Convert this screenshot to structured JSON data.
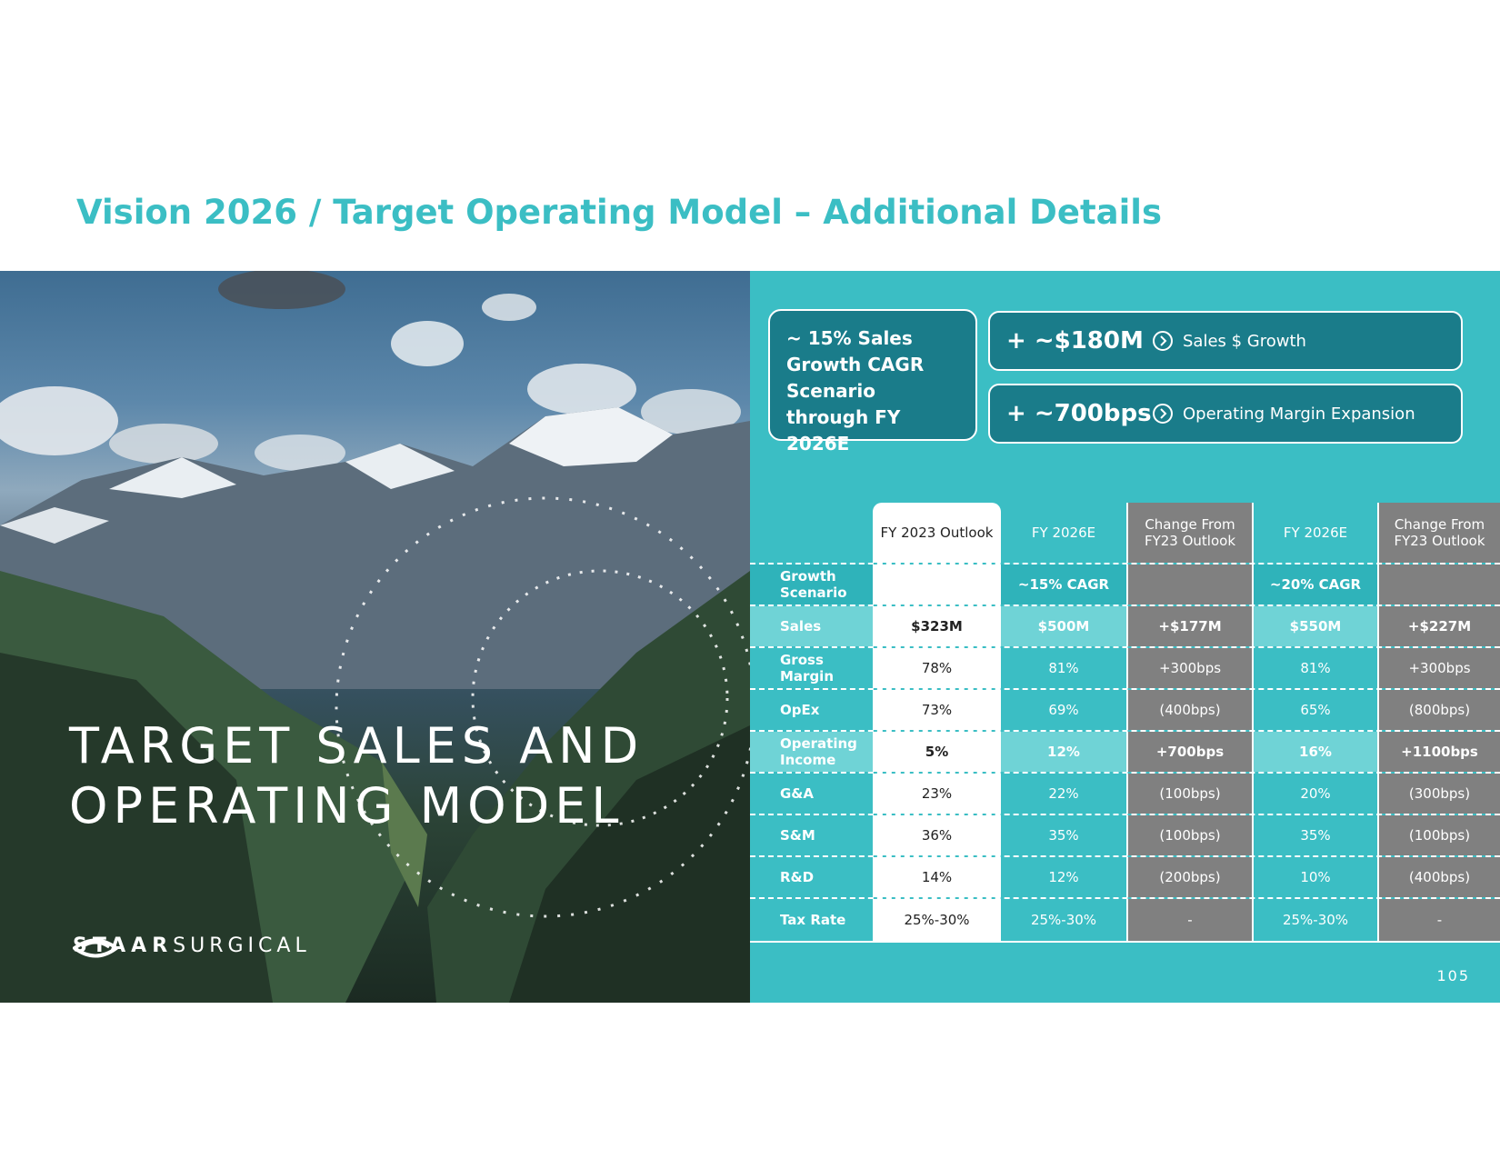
{
  "title": "Vision 2026 / Target Operating Model – Additional Details",
  "photo": {
    "heading_line1": "TARGET SALES AND",
    "heading_line2": "OPERATING MODEL",
    "logo_bold": "STAAR",
    "logo_light": "SURGICAL",
    "logo_icon": "eye-icon"
  },
  "summary": {
    "cagr_box": "~ 15% Sales Growth CAGR Scenario through FY 2026E",
    "kpis": [
      {
        "value": "+ ~$180M",
        "label": "Sales $ Growth",
        "icon": "chevron-right-circle-icon"
      },
      {
        "value": "+ ~700bps",
        "label": "Operating Margin Expansion",
        "icon": "chevron-right-circle-icon"
      }
    ]
  },
  "table": {
    "headers": [
      "",
      "FY 2023 Outlook",
      "FY 2026E",
      "Change From FY23 Outlook",
      "FY 2026E",
      "Change From FY23 Outlook"
    ],
    "rows": [
      {
        "label": "Growth Scenario",
        "cells": [
          "",
          "~15% CAGR",
          "",
          "~20% CAGR",
          ""
        ]
      },
      {
        "label": "Sales",
        "cells": [
          "$323M",
          "$500M",
          "+$177M",
          "$550M",
          "+$227M"
        ]
      },
      {
        "label": "Gross Margin",
        "cells": [
          "78%",
          "81%",
          "+300bps",
          "81%",
          "+300bps"
        ]
      },
      {
        "label": "OpEx",
        "cells": [
          "73%",
          "69%",
          "(400bps)",
          "65%",
          "(800bps)"
        ]
      },
      {
        "label": "Operating Income",
        "cells": [
          "5%",
          "12%",
          "+700bps",
          "16%",
          "+1100bps"
        ]
      },
      {
        "label": "G&A",
        "cells": [
          "23%",
          "22%",
          "(100bps)",
          "20%",
          "(300bps)"
        ]
      },
      {
        "label": "S&M",
        "cells": [
          "36%",
          "35%",
          "(100bps)",
          "35%",
          "(100bps)"
        ]
      },
      {
        "label": "R&D",
        "cells": [
          "14%",
          "12%",
          "(200bps)",
          "10%",
          "(400bps)"
        ]
      },
      {
        "label": "Tax Rate",
        "cells": [
          "25%-30%",
          "25%-30%",
          "-",
          "25%-30%",
          "-"
        ]
      }
    ]
  },
  "page_number": "105",
  "colors": {
    "teal": "#3bbec4",
    "dark_teal": "#1a7c8a",
    "gray": "#808080",
    "highlight": "#6fd3d6"
  }
}
